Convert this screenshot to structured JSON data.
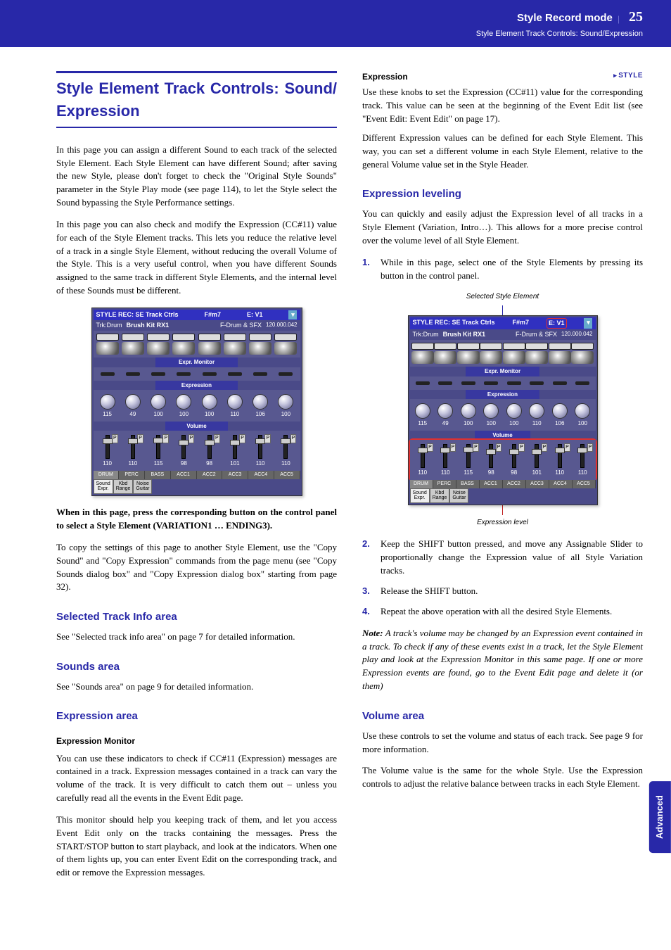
{
  "header": {
    "title": "Style Record mode",
    "page_number": "25",
    "subtitle": "Style Element Track Controls: Sound/Expression"
  },
  "side_tab": "Advanced",
  "left": {
    "h1_line1": "Style Element Track Controls: Sound/",
    "h1_line2": "Expression",
    "p1": "In this page you can assign a different Sound to each track of the selected Style Element. Each Style Element can have different Sound; after saving the new Style, please don't forget to check the \"Original Style Sounds\" parameter in the Style Play mode (see page 114), to let the Style select the Sound bypassing the Style Performance settings.",
    "p2": "In this page you can also check and modify the Expression (CC#11) value for each of the Style Element tracks. This lets you reduce the relative level of a track in a single Style Element, without reducing the overall Volume of the Style. This is a very useful control, when you have different Sounds assigned to the same track in different Style Elements, and the internal level of these Sounds must be different.",
    "bold_note": "When in this page, press the corresponding button on the control panel to select a Style Element (VARIATION1 … ENDING3).",
    "p3": "To copy the settings of this page to another Style Element, use the \"Copy Sound\" and \"Copy Expression\" commands from the page menu (see \"Copy Sounds dialog box\" and \"Copy Expression dialog box\" starting from page 32).",
    "h2a": "Selected Track Info area",
    "p4": "See \"Selected track info area\" on page 7 for detailed information.",
    "h2b": "Sounds area",
    "p5": "See \"Sounds area\" on page 9 for detailed information.",
    "h2c": "Expression area",
    "sub1": "Expression Monitor",
    "p6": "You can use these indicators to check if CC#11 (Expression) messages are contained in a track. Expression messages contained in a track can vary the volume of the track. It is very difficult to catch them out – unless you carefully read all the events in the Event Edit page.",
    "p7": "This monitor should help you keeping track of them, and let you access Event Edit only on the tracks containing the messages. Press the START/STOP button to start playback, and look at the indicators. When one of them lights up, you can enter Event Edit on the corresponding track, and edit or remove the Expression messages."
  },
  "right": {
    "label_expression": "Expression",
    "style_tag": "STYLE",
    "p1": "Use these knobs to set the Expression (CC#11) value for the corresponding track. This value can be seen at the beginning of the Event Edit list (see \"Event Edit: Event Edit\" on page 17).",
    "p2": "Different Expression values can be defined for each Style Element. This way, you can set a different volume in each Style Element, relative to the general Volume value set in the Style Header.",
    "h2a": "Expression leveling",
    "p3": "You can quickly and easily adjust the Expression level of all tracks in a Style Element (Variation, Intro…). This allows for a more precise control over the volume level of all Style Element.",
    "step1": "While in this page, select one of the Style Elements by pressing its button in the control panel.",
    "step2": "Keep the SHIFT button pressed, and move any Assignable Slider to proportionally change the Expression value of all Style Variation tracks.",
    "step3": "Release the SHIFT button.",
    "step4": "Repeat the above operation with all the desired Style Elements.",
    "annot_top": "Selected Style Element",
    "annot_bottom": "Expression level",
    "note_label": "Note:",
    "note": "A track's volume may be changed by an Expression event contained in a track. To check if any of these events exist in a track, let the Style Element play and look at the Expression Monitor in this same page. If one or more Expression events are found, go to the Event Edit page and delete it (or them)",
    "h2b": "Volume area",
    "p4": "Use these controls to set the volume and status of each track. See page 9 for more information.",
    "p5": "The Volume value is the same for the whole Style. Use the Expression controls to adjust the relative balance between tracks in each Style Element."
  },
  "screenshot": {
    "title_left": "STYLE REC: SE Track Ctrls",
    "title_mid": "F#m7",
    "title_right": "E: V1",
    "info_trk": "Trk:Drum",
    "info_sound": "Brush Kit RX1",
    "info_cat": "F-Drum & SFX",
    "info_num": "120.000.042",
    "expr_label": "Expr. Monitor",
    "expression_label": "Expression",
    "volume_label": "Volume",
    "knob_vals": [
      "115",
      "49",
      "100",
      "100",
      "100",
      "110",
      "106",
      "100"
    ],
    "slider_vals": [
      "110",
      "110",
      "115",
      "98",
      "98",
      "101",
      "110",
      "110"
    ],
    "tabs": [
      "DRUM",
      "PERC",
      "BASS",
      "ACC1",
      "ACC2",
      "ACC3",
      "ACC4",
      "ACC5"
    ],
    "btabs": [
      "Sound\nExpr.",
      "Kbd\nRange",
      "Noise\nGuitar"
    ]
  }
}
